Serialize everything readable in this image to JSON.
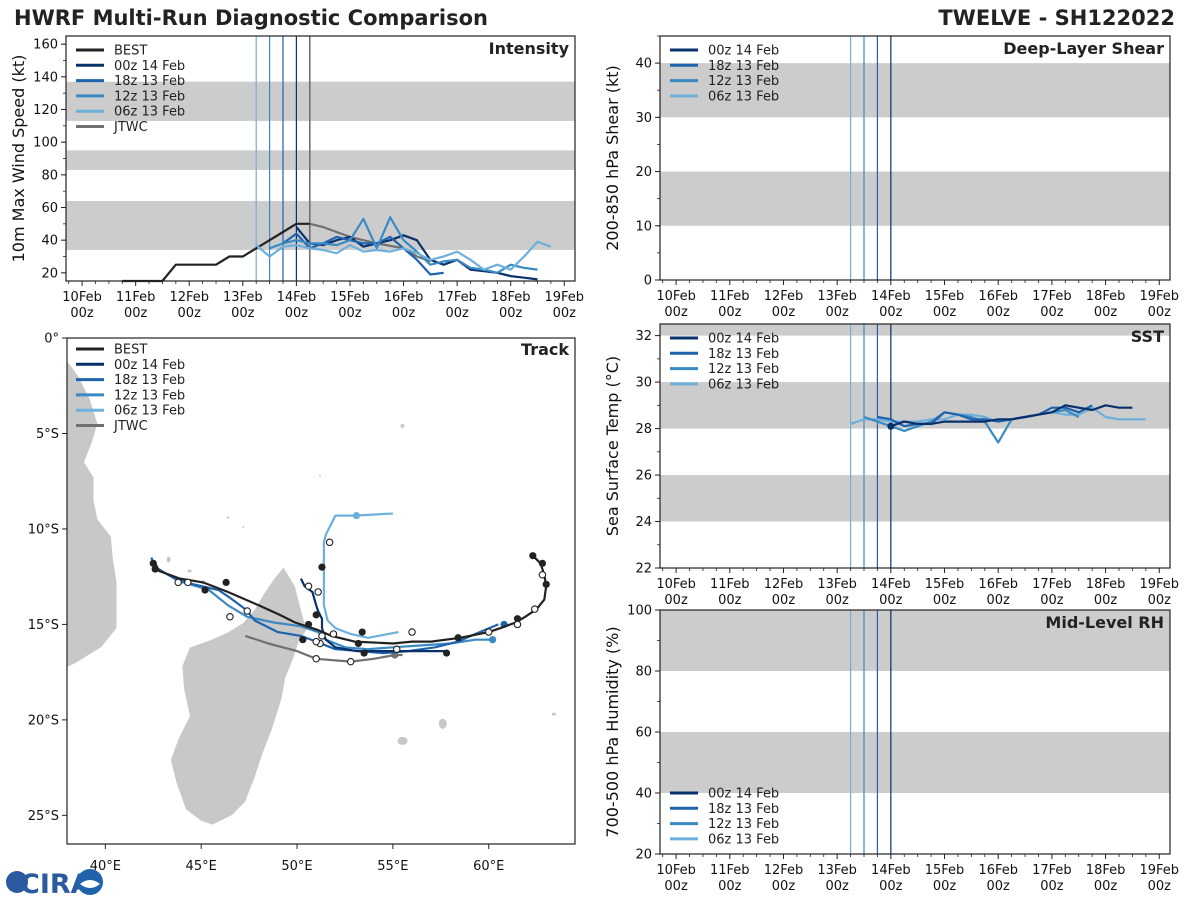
{
  "header": {
    "title": "HWRF Multi-Run Diagnostic Comparison",
    "storm": "TWELVE - SH122022",
    "logo_text": "CIRA"
  },
  "colors": {
    "BEST": "#222222",
    "00z 14 Feb": "#08306b",
    "18z 13 Feb": "#1f63ad",
    "12z 13 Feb": "#3a8ac4",
    "06z 13 Feb": "#6eb0dc",
    "JTWC": "#707070",
    "band": "#cccccc",
    "land": "#c8c8c8"
  },
  "time_axis": {
    "labels": [
      "10Feb 00z",
      "11Feb 00z",
      "12Feb 00z",
      "13Feb 00z",
      "14Feb 00z",
      "15Feb 00z",
      "16Feb 00z",
      "17Feb 00z",
      "18Feb 00z",
      "19Feb 00z"
    ],
    "days": [
      10,
      11,
      12,
      13,
      14,
      15,
      16,
      17,
      18,
      19
    ],
    "xlim": [
      9.7,
      19.2
    ],
    "init_times": [
      {
        "run": "06z 13 Feb",
        "t": 13.25
      },
      {
        "run": "12z 13 Feb",
        "t": 13.5
      },
      {
        "run": "18z 13 Feb",
        "t": 13.75
      },
      {
        "run": "00z 14 Feb",
        "t": 14.0
      }
    ]
  },
  "chart_data": [
    {
      "id": "intensity",
      "type": "line",
      "title": "Intensity",
      "ylabel": "10m Max Wind Speed (kt)",
      "ylim": [
        15,
        165
      ],
      "yticks": [
        20,
        40,
        60,
        80,
        100,
        120,
        140,
        160
      ],
      "bands": [
        [
          34,
          64
        ],
        [
          83,
          95
        ],
        [
          113,
          137
        ]
      ],
      "legend": [
        "BEST",
        "00z 14 Feb",
        "18z 13 Feb",
        "12z 13 Feb",
        "06z 13 Feb",
        "JTWC"
      ],
      "extra_vline": {
        "run": "JTWC",
        "t": 14.25
      },
      "series": [
        {
          "name": "BEST",
          "x": [
            10.75,
            11.5,
            11.75,
            12.5,
            12.75,
            13.0,
            13.25,
            13.5,
            13.75,
            14.0,
            14.25
          ],
          "y": [
            15,
            15,
            25,
            25,
            30,
            30,
            35,
            40,
            45,
            50,
            50
          ]
        },
        {
          "name": "JTWC",
          "x": [
            14.25,
            14.5,
            14.75,
            15.0,
            15.5,
            16.0,
            16.25,
            16.5
          ],
          "y": [
            50,
            48,
            45,
            42,
            38,
            35,
            30,
            27
          ]
        },
        {
          "name": "00z 14 Feb",
          "x": [
            14.0,
            14.25,
            14.5,
            14.75,
            15.0,
            15.25,
            15.5,
            15.75,
            16.0,
            16.25,
            16.5,
            16.75,
            17.0,
            17.25,
            17.5,
            17.75,
            18.0,
            18.25,
            18.5
          ],
          "y": [
            48,
            38,
            37,
            40,
            42,
            36,
            38,
            40,
            43,
            40,
            28,
            25,
            28,
            22,
            21,
            20,
            18,
            17,
            16
          ]
        },
        {
          "name": "18z 13 Feb",
          "x": [
            13.75,
            14.0,
            14.25,
            14.5,
            14.75,
            15.0,
            15.25,
            15.5,
            15.75,
            16.0,
            16.25,
            16.5,
            16.75
          ],
          "y": [
            38,
            44,
            35,
            38,
            42,
            40,
            38,
            38,
            42,
            35,
            28,
            19,
            20
          ]
        },
        {
          "name": "12z 13 Feb",
          "x": [
            13.5,
            13.75,
            14.0,
            14.25,
            14.5,
            14.75,
            15.0,
            15.25,
            15.5,
            15.75,
            16.0,
            16.25,
            16.5,
            16.75,
            17.0,
            17.25,
            17.5,
            17.75,
            18.0,
            18.25,
            18.5
          ],
          "y": [
            35,
            38,
            40,
            38,
            38,
            37,
            40,
            53,
            35,
            54,
            40,
            33,
            25,
            27,
            28,
            23,
            22,
            20,
            25,
            23,
            22
          ]
        },
        {
          "name": "06z 13 Feb",
          "x": [
            13.25,
            13.5,
            13.75,
            14.0,
            14.25,
            14.5,
            14.75,
            15.0,
            15.25,
            15.5,
            15.75,
            16.0,
            16.25,
            16.5,
            16.75,
            17.0,
            17.25,
            17.5,
            17.75,
            18.0,
            18.25,
            18.5,
            18.75
          ],
          "y": [
            37,
            30,
            36,
            37,
            35,
            34,
            32,
            37,
            33,
            34,
            33,
            35,
            32,
            28,
            30,
            33,
            28,
            22,
            25,
            22,
            30,
            39,
            36
          ]
        }
      ]
    },
    {
      "id": "shear",
      "type": "line",
      "title": "Deep-Layer Shear",
      "ylabel": "200-850 hPa Shear (kt)",
      "ylim": [
        0,
        45
      ],
      "yticks": [
        0,
        10,
        20,
        30,
        40
      ],
      "bands": [
        [
          10,
          20
        ],
        [
          30,
          40
        ]
      ],
      "legend": [
        "00z 14 Feb",
        "18z 13 Feb",
        "12z 13 Feb",
        "06z 13 Feb"
      ],
      "series": []
    },
    {
      "id": "sst",
      "type": "line",
      "title": "SST",
      "ylabel": "Sea Surface Temp (°C)",
      "ylim": [
        22,
        32.5
      ],
      "yticks": [
        22,
        24,
        26,
        28,
        30,
        32
      ],
      "bands": [
        [
          24,
          26
        ],
        [
          28,
          30
        ],
        [
          32,
          32.5
        ]
      ],
      "legend": [
        "00z 14 Feb",
        "18z 13 Feb",
        "12z 13 Feb",
        "06z 13 Feb"
      ],
      "series": [
        {
          "name": "06z 13 Feb",
          "x": [
            13.25,
            13.5,
            13.75,
            14.0,
            14.25,
            14.5,
            14.75,
            15.0,
            15.25,
            15.5,
            15.75,
            16.0,
            16.25,
            16.5,
            16.75,
            17.0,
            17.25,
            17.5,
            17.75,
            18.0,
            18.25,
            18.5,
            18.75
          ],
          "y": [
            28.2,
            28.4,
            28.4,
            28.3,
            28.3,
            28.3,
            28.4,
            28.4,
            28.6,
            28.6,
            28.5,
            28.3,
            28.4,
            28.5,
            28.6,
            28.7,
            28.6,
            28.6,
            28.9,
            28.5,
            28.4,
            28.4,
            28.4
          ]
        },
        {
          "name": "12z 13 Feb",
          "x": [
            13.5,
            13.75,
            14.0,
            14.25,
            14.5,
            14.75,
            15.0,
            15.25,
            15.5,
            15.75,
            16.0,
            16.25,
            16.5,
            16.75,
            17.0,
            17.25,
            17.5
          ],
          "y": [
            28.5,
            28.3,
            28.1,
            27.9,
            28.1,
            28.3,
            28.7,
            28.6,
            28.5,
            28.3,
            27.4,
            28.4,
            28.5,
            28.6,
            28.7,
            28.8,
            28.5
          ]
        },
        {
          "name": "18z 13 Feb",
          "x": [
            13.75,
            14.0,
            14.25,
            14.5,
            14.75,
            15.0,
            15.25,
            15.5,
            15.75,
            16.0,
            16.25,
            16.5,
            16.75,
            17.0,
            17.25,
            17.5,
            17.75
          ],
          "y": [
            28.5,
            28.4,
            28.1,
            28.2,
            28.2,
            28.7,
            28.6,
            28.4,
            28.4,
            28.3,
            28.4,
            28.5,
            28.6,
            28.9,
            28.9,
            28.7,
            29.0
          ]
        },
        {
          "name": "00z 14 Feb",
          "x": [
            14.0,
            14.25,
            14.5,
            14.75,
            15.0,
            15.25,
            15.5,
            15.75,
            16.0,
            16.25,
            16.5,
            16.75,
            17.0,
            17.25,
            17.5,
            17.75,
            18.0,
            18.25,
            18.5
          ],
          "y": [
            28.1,
            28.3,
            28.2,
            28.2,
            28.3,
            28.3,
            28.3,
            28.3,
            28.4,
            28.4,
            28.5,
            28.6,
            28.7,
            29.0,
            28.9,
            28.8,
            29.0,
            28.9,
            28.9
          ]
        }
      ]
    },
    {
      "id": "rh",
      "type": "line",
      "title": "Mid-Level RH",
      "ylabel": "700-500 hPa Humidity (%)",
      "ylim": [
        20,
        100
      ],
      "yticks": [
        20,
        40,
        60,
        80,
        100
      ],
      "bands": [
        [
          40,
          60
        ],
        [
          80,
          100
        ]
      ],
      "legend": [
        "00z 14 Feb",
        "18z 13 Feb",
        "12z 13 Feb",
        "06z 13 Feb"
      ],
      "series": []
    },
    {
      "id": "track",
      "type": "scatter",
      "title": "Track",
      "xlim": [
        38.0,
        64.5
      ],
      "ylim": [
        -26.5,
        0
      ],
      "xticks": [
        40,
        45,
        50,
        55,
        60
      ],
      "xtick_labels": [
        "40°E",
        "45°E",
        "50°E",
        "55°E",
        "60°E"
      ],
      "yticks": [
        0,
        -5,
        -10,
        -15,
        -20,
        -25
      ],
      "ytick_labels": [
        "0°",
        "5°S",
        "10°S",
        "15°S",
        "20°S",
        "25°S"
      ],
      "legend": [
        "BEST",
        "00z 14 Feb",
        "18z 13 Feb",
        "12z 13 Feb",
        "06z 13 Feb",
        "JTWC"
      ],
      "tracks": [
        {
          "name": "JTWC",
          "lon": [
            47.3,
            48.5,
            50.0,
            51.0,
            52.8,
            54.0,
            55.1,
            55.5
          ],
          "lat": [
            -15.6,
            -16.0,
            -16.4,
            -16.8,
            -16.95,
            -16.8,
            -16.6,
            -16.6
          ],
          "open_markers": [
            {
              "lon": 51.0,
              "lat": -16.8
            },
            {
              "lon": 52.8,
              "lat": -16.95
            }
          ],
          "filled_markers": [
            {
              "lon": 55.1,
              "lat": -16.6
            }
          ]
        },
        {
          "name": "06z 13 Feb",
          "lon": [
            55.0,
            54.8,
            53.0,
            52.0,
            51.5,
            51.4,
            51.4,
            51.4,
            51.6,
            52.0,
            52.8,
            53.7,
            55.3
          ],
          "lat": [
            -9.2,
            -9.2,
            -9.3,
            -9.3,
            -10.3,
            -10.7,
            -12.0,
            -14.0,
            -14.8,
            -15.2,
            -15.5,
            -15.7,
            -15.4
          ],
          "open_markers": [
            {
              "lon": 51.7,
              "lat": -10.7
            }
          ],
          "filled_markers": [
            {
              "lon": 53.1,
              "lat": -9.3
            }
          ]
        },
        {
          "name": "12z 13 Feb",
          "lon": [
            43.8,
            44.1,
            45.4,
            46.4,
            47.4,
            48.8,
            50.2,
            51.1,
            51.5,
            52.5,
            53.7,
            55.0,
            56.5,
            58.0,
            59.3,
            60.2
          ],
          "lat": [
            -12.8,
            -12.8,
            -13.2,
            -14.0,
            -14.6,
            -14.9,
            -15.1,
            -15.4,
            -15.8,
            -16.2,
            -16.3,
            -16.2,
            -16.1,
            -16.0,
            -15.8,
            -15.8
          ],
          "open_markers": [],
          "filled_markers": [
            {
              "lon": 60.2,
              "lat": -15.8
            }
          ]
        },
        {
          "name": "18z 13 Feb",
          "lon": [
            42.4,
            42.6,
            43.6,
            44.6,
            45.9,
            46.5,
            47.3,
            47.8,
            49.0,
            50.2,
            51.0,
            52.0,
            53.3,
            54.5,
            55.8,
            57.2,
            58.4,
            59.3,
            60.5
          ],
          "lat": [
            -11.5,
            -12.0,
            -12.6,
            -12.9,
            -13.2,
            -13.6,
            -14.2,
            -14.8,
            -15.4,
            -15.6,
            -15.9,
            -16.3,
            -16.4,
            -16.5,
            -16.4,
            -16.2,
            -15.9,
            -15.5,
            -15.0
          ],
          "open_markers": [],
          "filled_markers": [
            {
              "lon": 60.8,
              "lat": -15.0
            }
          ]
        },
        {
          "name": "00z 14 Feb",
          "lon": [
            50.2,
            50.4,
            50.8,
            51.0,
            51.1,
            51.3,
            51.3,
            51.5,
            52.0,
            53.1,
            54.2,
            55.3,
            56.6,
            57.8
          ],
          "lat": [
            -12.6,
            -13.0,
            -13.3,
            -14.0,
            -14.3,
            -14.7,
            -15.2,
            -15.8,
            -16.2,
            -16.4,
            -16.4,
            -16.4,
            -16.4,
            -16.4
          ],
          "open_markers": [
            {
              "lon": 50.6,
              "lat": -13.0
            },
            {
              "lon": 51.1,
              "lat": -13.3
            },
            {
              "lon": 51.3,
              "lat": -15.6
            },
            {
              "lon": 51.2,
              "lat": -16.0
            },
            {
              "lon": 55.2,
              "lat": -16.3
            }
          ],
          "filled_markers": [
            {
              "lon": 51.3,
              "lat": -12.0
            },
            {
              "lon": 51.0,
              "lat": -14.5
            },
            {
              "lon": 53.5,
              "lat": -16.5
            },
            {
              "lon": 57.8,
              "lat": -16.5
            }
          ]
        },
        {
          "name": "BEST",
          "lon": [
            62.3,
            62.7,
            62.9,
            63.0,
            62.9,
            62.5,
            61.9,
            61.4,
            60.6,
            60.0,
            58.5,
            57.0,
            56.0,
            55.0,
            53.0,
            51.8,
            51.1,
            50.5,
            49.9,
            49.1,
            48.0,
            46.4,
            45.1,
            43.9,
            42.8,
            42.6
          ],
          "lat": [
            -11.4,
            -11.8,
            -12.4,
            -13.0,
            -13.7,
            -14.2,
            -14.6,
            -14.9,
            -15.2,
            -15.4,
            -15.7,
            -15.9,
            -15.9,
            -16.0,
            -15.9,
            -15.6,
            -15.3,
            -15.1,
            -14.9,
            -14.5,
            -14.0,
            -13.3,
            -12.8,
            -12.6,
            -12.2,
            -11.8
          ],
          "open_markers": [
            {
              "lon": 62.8,
              "lat": -12.4
            },
            {
              "lon": 62.4,
              "lat": -14.2
            },
            {
              "lon": 61.5,
              "lat": -15.0
            },
            {
              "lon": 60.0,
              "lat": -15.4
            },
            {
              "lon": 56.0,
              "lat": -15.4
            },
            {
              "lon": 51.9,
              "lat": -15.5
            },
            {
              "lon": 51.0,
              "lat": -15.9
            },
            {
              "lon": 47.4,
              "lat": -14.3
            },
            {
              "lon": 46.5,
              "lat": -14.6
            },
            {
              "lon": 44.3,
              "lat": -12.8
            },
            {
              "lon": 43.8,
              "lat": -12.8
            }
          ],
          "filled_markers": [
            {
              "lon": 62.3,
              "lat": -11.4
            },
            {
              "lon": 62.8,
              "lat": -11.8
            },
            {
              "lon": 63.0,
              "lat": -12.9
            },
            {
              "lon": 61.5,
              "lat": -14.7
            },
            {
              "lon": 58.4,
              "lat": -15.7
            },
            {
              "lon": 53.4,
              "lat": -15.4
            },
            {
              "lon": 53.2,
              "lat": -16.0
            },
            {
              "lon": 50.6,
              "lat": -15.0
            },
            {
              "lon": 50.3,
              "lat": -15.8
            },
            {
              "lon": 46.3,
              "lat": -12.8
            },
            {
              "lon": 45.2,
              "lat": -13.2
            },
            {
              "lon": 42.6,
              "lat": -12.1
            },
            {
              "lon": 42.5,
              "lat": -11.8
            }
          ]
        }
      ]
    }
  ]
}
